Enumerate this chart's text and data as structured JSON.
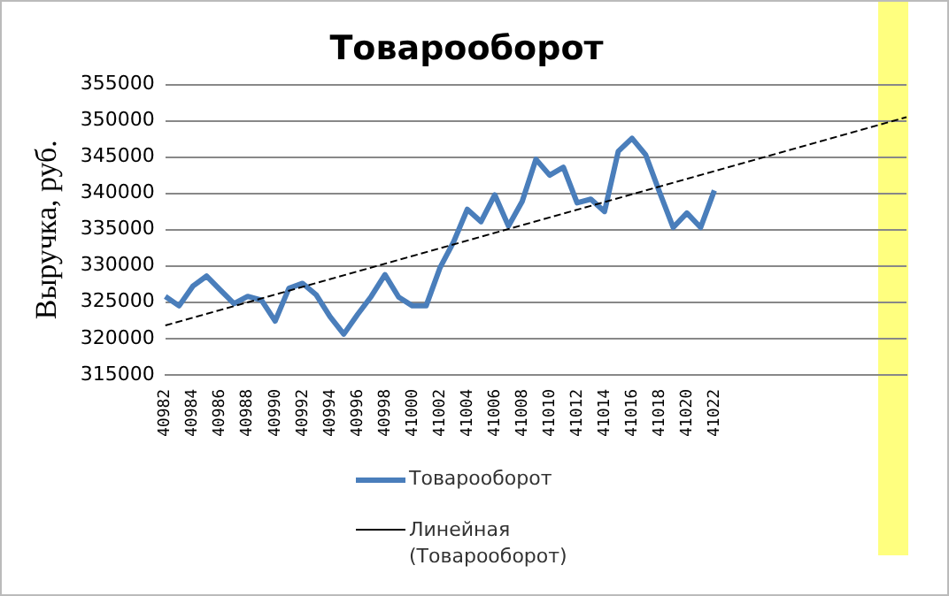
{
  "chart_data": {
    "type": "line",
    "title": "Товарооборот",
    "ylabel": "Выручка, руб.",
    "categories": [
      "40982",
      null,
      "40984",
      null,
      "40986",
      null,
      "40988",
      null,
      "40990",
      null,
      "40992",
      null,
      "40994",
      null,
      "40996",
      null,
      "40998",
      null,
      "41000",
      null,
      "41002",
      null,
      "41004",
      null,
      "41006",
      null,
      "41008",
      null,
      "41010",
      null,
      "41012",
      null,
      "41014",
      null,
      "41016",
      null,
      "41018",
      null,
      "41020",
      null,
      "41022",
      null,
      null,
      null,
      null,
      null,
      null,
      null,
      null,
      null,
      null,
      null,
      null,
      null,
      null
    ],
    "series": [
      {
        "name": "Товарооборот",
        "color": "#4a7ebb",
        "values": [
          325800,
          324500,
          327200,
          328600,
          326700,
          324800,
          325800,
          325300,
          322400,
          326900,
          327600,
          326000,
          323000,
          320600,
          323300,
          325800,
          328800,
          325700,
          324500,
          324500,
          329700,
          333300,
          337800,
          336100,
          339800,
          335500,
          338900,
          344700,
          342500,
          343600,
          338700,
          339200,
          337500,
          345800,
          347600,
          345300,
          340200,
          335300,
          337300,
          335300,
          340400,
          null,
          null,
          null,
          null,
          null,
          null,
          null,
          null,
          null,
          null,
          null,
          null,
          null,
          null
        ]
      },
      {
        "name": "Линейная (Товарооборот)",
        "type": "line",
        "color": "#000000",
        "line_style": "dashed",
        "values": [
          321800,
          null,
          null,
          null,
          null,
          null,
          null,
          null,
          null,
          null,
          null,
          null,
          null,
          null,
          null,
          null,
          null,
          null,
          null,
          null,
          null,
          null,
          null,
          null,
          null,
          null,
          null,
          null,
          null,
          null,
          null,
          null,
          null,
          null,
          null,
          null,
          null,
          null,
          null,
          null,
          null,
          null,
          null,
          null,
          null,
          null,
          null,
          null,
          null,
          null,
          null,
          null,
          null,
          null,
          350500
        ]
      }
    ],
    "ylim": [
      315000,
      355000
    ],
    "yticks": [
      315000,
      320000,
      325000,
      330000,
      335000,
      340000,
      345000,
      350000,
      355000
    ],
    "grid": "y",
    "legend": "bottom",
    "marker": "none"
  }
}
